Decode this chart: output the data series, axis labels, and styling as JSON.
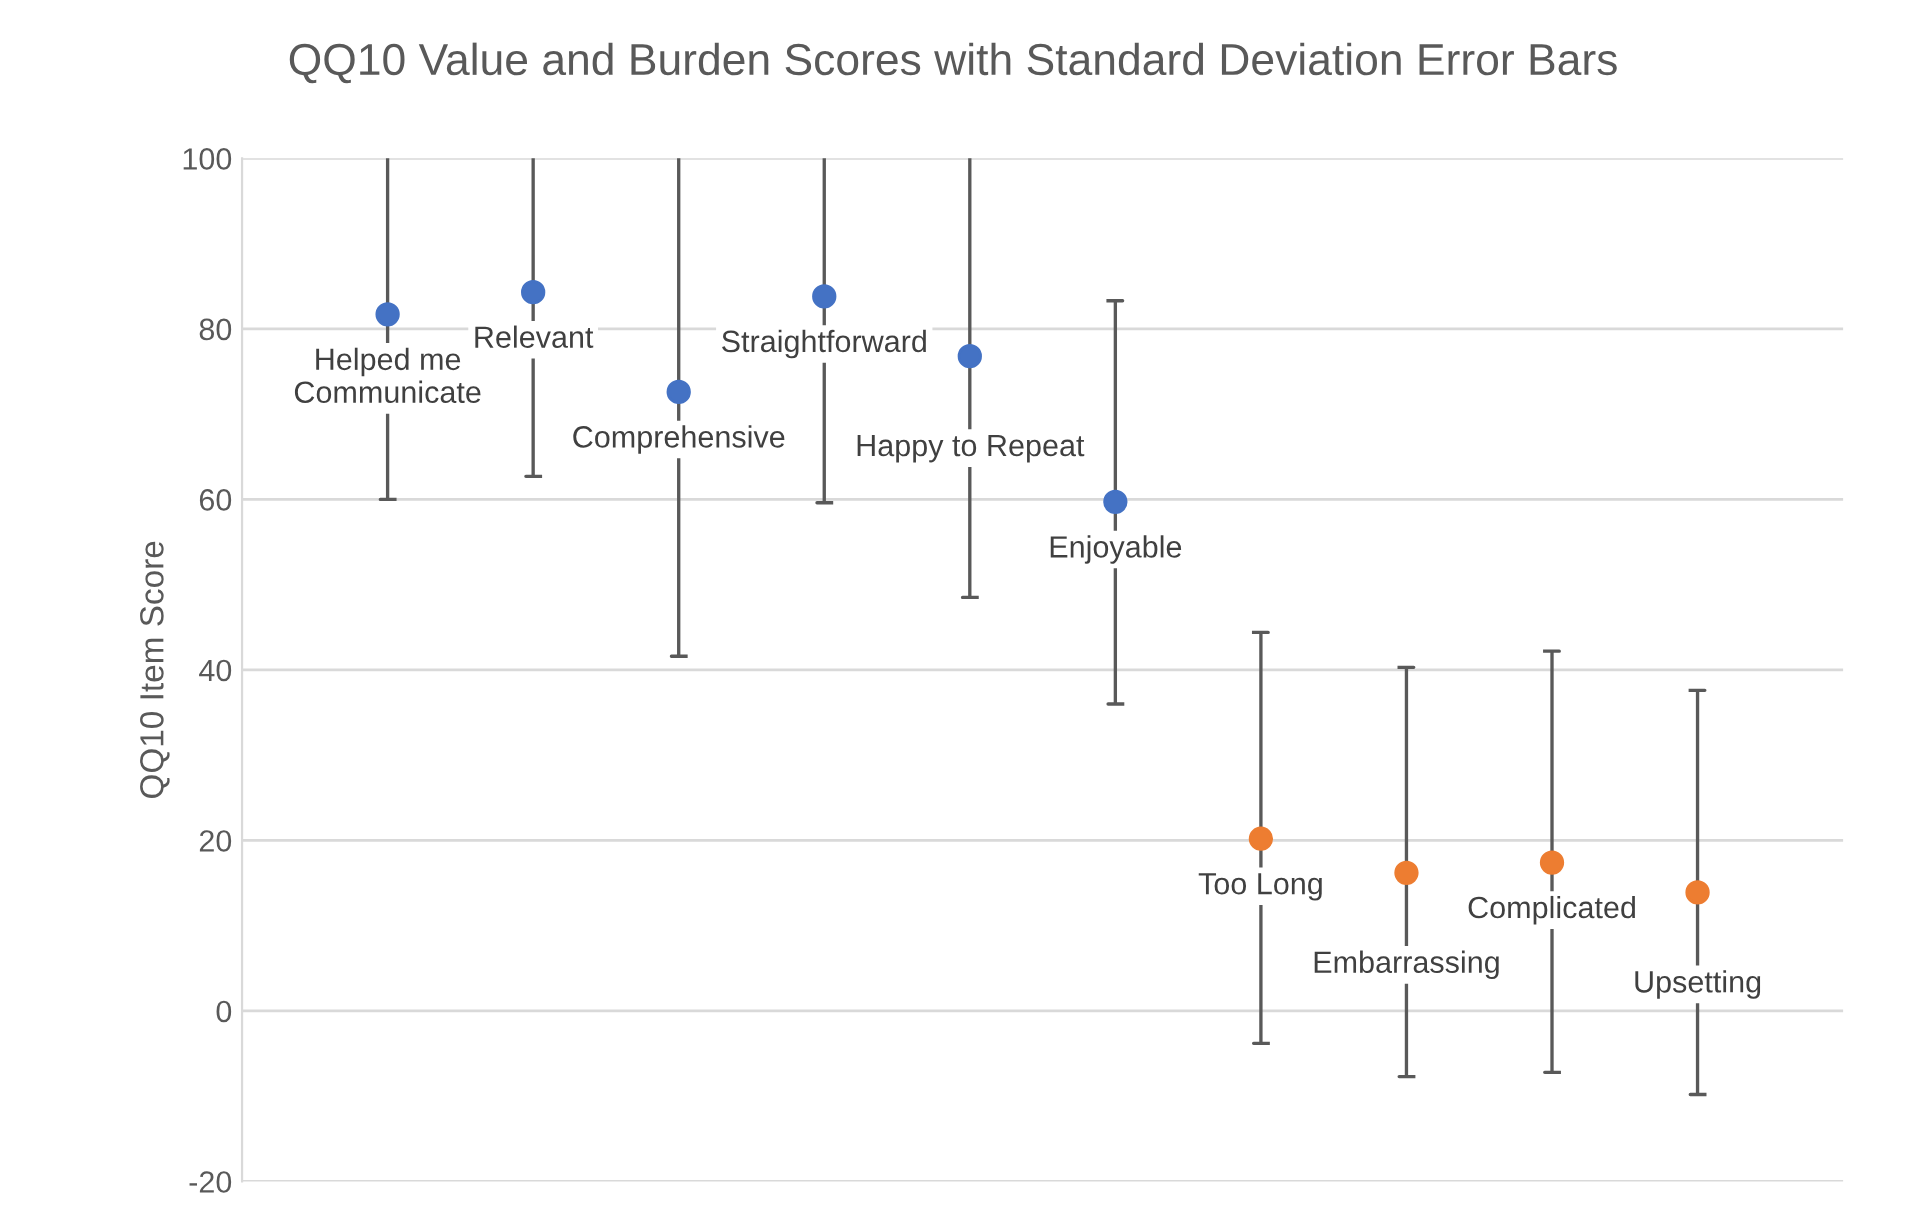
{
  "chart_data": {
    "type": "scatter",
    "title": "QQ10 Value and Burden Scores with Standard Deviation Error Bars",
    "ylabel": "QQ10 Item Score",
    "categories": [
      "Helped me\nCommunicate",
      "Relevant",
      "Comprehensive",
      "Straightforward",
      "Happy to Repeat",
      "Enjoyable",
      "Too Long",
      "Embarrassing",
      "Complicated",
      "Upsetting"
    ],
    "series": [
      {
        "color": "#4472c4",
        "values": [
          81.7,
          84.3,
          72.6,
          83.8,
          76.8,
          59.7,
          null,
          null,
          null,
          null
        ],
        "errors": [
          [
            60.0,
            100
          ],
          [
            62.7,
            100
          ],
          [
            41.6,
            100
          ],
          [
            59.6,
            100
          ],
          [
            48.5,
            100
          ],
          [
            36.0,
            83.3
          ],
          null,
          null,
          null,
          null
        ]
      },
      {
        "color": "#ed7d31",
        "values": [
          null,
          null,
          null,
          null,
          null,
          null,
          20.2,
          16.2,
          17.4,
          13.9
        ],
        "errors": [
          null,
          null,
          null,
          null,
          null,
          null,
          [
            -3.8,
            44.4
          ],
          [
            -7.7,
            40.3
          ],
          [
            -7.2,
            42.2
          ],
          [
            -9.8,
            37.6
          ]
        ]
      }
    ],
    "ylim": [
      -20,
      100
    ],
    "yticks": [
      -20,
      0,
      20,
      40,
      60,
      80,
      100
    ],
    "grid": "y",
    "tick_labels": "y",
    "marker": "circle"
  }
}
